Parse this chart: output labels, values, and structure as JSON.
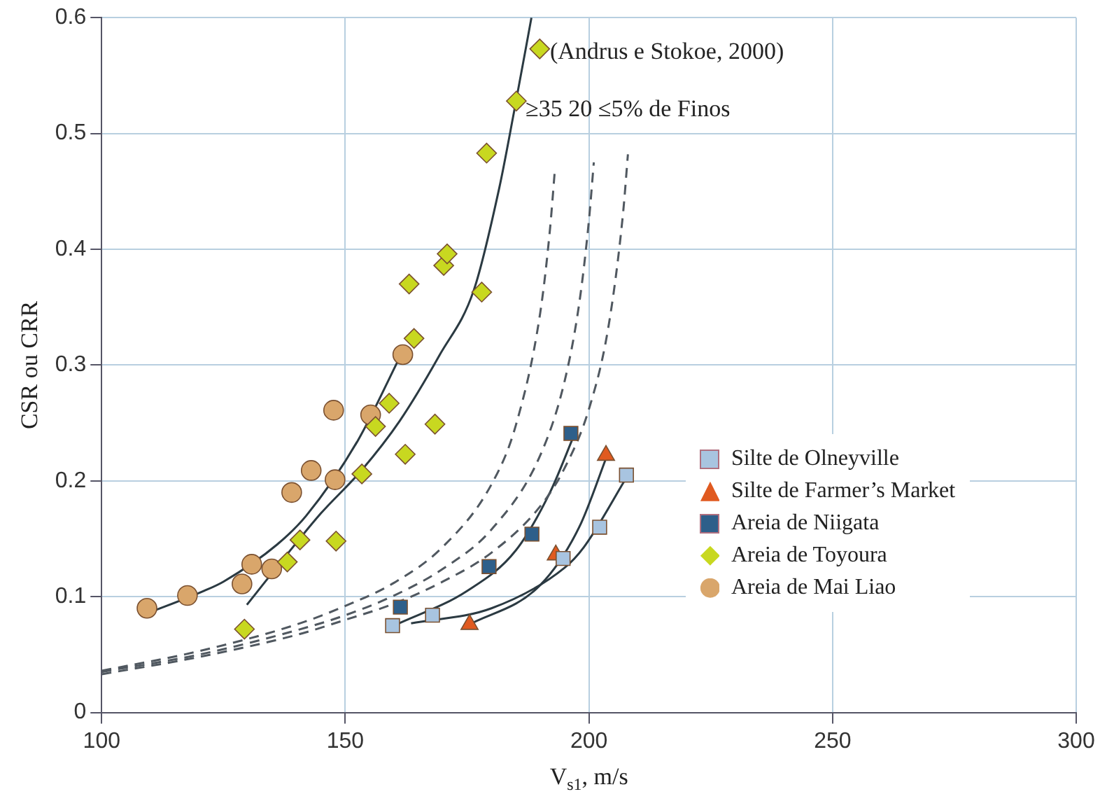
{
  "chart_data": {
    "type": "scatter",
    "xlabel": "V$_{s1}$, m/s",
    "ylabel": "CSR ou CRR",
    "xlim": [
      100,
      300
    ],
    "xticks": [
      100,
      150,
      200,
      250,
      300
    ],
    "ylim": [
      0,
      0.6
    ],
    "yticks": [
      0,
      0.1,
      0.2,
      0.3,
      0.4,
      0.5,
      0.6
    ],
    "grid": true,
    "legend": "right",
    "annotations": [
      {
        "text": "(Andrus e Stokoe, 2000)",
        "x": 192,
        "y": 0.57
      },
      {
        "text": "≥35 20 ≤5% de Finos",
        "x": 187,
        "y": 0.52
      }
    ],
    "series": [
      {
        "type": "line",
        "color": "#505860",
        "line_style": "dashed",
        "marker": "none",
        "x": [
          100,
          120,
          140,
          150,
          160,
          170,
          180,
          185,
          190,
          192,
          193
        ],
        "values": [
          0.036,
          0.053,
          0.076,
          0.092,
          0.112,
          0.143,
          0.197,
          0.248,
          0.345,
          0.417,
          0.468
        ]
      },
      {
        "type": "line",
        "color": "#505860",
        "line_style": "dashed",
        "marker": "none",
        "x": [
          100,
          120,
          140,
          150,
          160,
          170,
          180,
          190,
          195,
          198,
          200,
          201
        ],
        "values": [
          0.035,
          0.05,
          0.071,
          0.084,
          0.101,
          0.124,
          0.158,
          0.222,
          0.286,
          0.353,
          0.425,
          0.475
        ]
      },
      {
        "type": "line",
        "color": "#505860",
        "line_style": "dashed",
        "marker": "none",
        "x": [
          100,
          120,
          140,
          150,
          160,
          170,
          180,
          190,
          195,
          200,
          204,
          207,
          208
        ],
        "values": [
          0.033,
          0.048,
          0.067,
          0.08,
          0.094,
          0.113,
          0.138,
          0.178,
          0.211,
          0.262,
          0.333,
          0.431,
          0.482
        ]
      },
      {
        "type": "line",
        "color": "#2b3a42",
        "line_style": "solid",
        "marker": "none",
        "x": [
          109,
          121,
          125,
          136,
          142,
          152.6,
          161.2
        ],
        "values": [
          0.085,
          0.105,
          0.113,
          0.145,
          0.17,
          0.235,
          0.307
        ]
      },
      {
        "type": "line",
        "color": "#2b3a42",
        "line_style": "solid",
        "marker": "none",
        "x": [
          129.8,
          136.8,
          145,
          153.3,
          161.2,
          169.4,
          176.4,
          181.6,
          184.6,
          188.2
        ],
        "values": [
          0.093,
          0.13,
          0.172,
          0.209,
          0.252,
          0.309,
          0.365,
          0.453,
          0.518,
          0.6
        ]
      },
      {
        "type": "line",
        "color": "#2b3a42",
        "line_style": "solid",
        "marker": "none",
        "x": [
          163.5,
          180,
          195,
          199,
          208
        ],
        "values": [
          0.077,
          0.09,
          0.125,
          0.143,
          0.205
        ]
      },
      {
        "type": "line",
        "color": "#2b3a42",
        "line_style": "solid",
        "marker": "none",
        "x": [
          160,
          175,
          185,
          192,
          197
        ],
        "values": [
          0.075,
          0.105,
          0.14,
          0.19,
          0.24
        ]
      },
      {
        "type": "line",
        "color": "#2b3a42",
        "line_style": "solid",
        "marker": "none",
        "x": [
          175,
          190,
          198,
          204
        ],
        "values": [
          0.075,
          0.11,
          0.16,
          0.225
        ]
      },
      {
        "name": "Silte de Olneyville",
        "color": "#a8c4e0",
        "marker": "square",
        "x": [
          159.7,
          167.9,
          194.7,
          202.2,
          207.7
        ],
        "values": [
          0.075,
          0.084,
          0.133,
          0.16,
          0.205
        ]
      },
      {
        "name": "Silte de Farmer’s Market",
        "color": "#e05a20",
        "marker": "triangle",
        "x": [
          175.5,
          193.2,
          203.5
        ],
        "values": [
          0.076,
          0.136,
          0.222
        ]
      },
      {
        "name": "Areia de Niigata",
        "color": "#2e5f8a",
        "marker": "square",
        "x": [
          161.3,
          179.5,
          188.3,
          196.3
        ],
        "values": [
          0.091,
          0.126,
          0.154,
          0.241
        ]
      },
      {
        "name": "Areia de Toyoura",
        "color": "#c8d820",
        "marker": "diamond",
        "x": [
          129.3,
          138.1,
          140.7,
          148.1,
          153.4,
          156.2,
          159,
          162.3,
          168.4,
          164.1,
          163.1,
          170.2,
          170.9,
          178,
          179,
          185.1,
          189.9
        ],
        "values": [
          0.072,
          0.13,
          0.149,
          0.148,
          0.206,
          0.247,
          0.267,
          0.223,
          0.249,
          0.323,
          0.37,
          0.386,
          0.396,
          0.363,
          0.483,
          0.528,
          0.573
        ]
      },
      {
        "name": "Areia de Mai Liao",
        "color": "#d9a66b",
        "marker": "circle",
        "x": [
          109.3,
          117.6,
          128.8,
          130.8,
          134.9,
          139,
          143,
          147.9,
          147.6,
          155.2,
          161.8
        ],
        "values": [
          0.09,
          0.101,
          0.111,
          0.128,
          0.124,
          0.19,
          0.209,
          0.201,
          0.261,
          0.257,
          0.309
        ]
      }
    ]
  }
}
